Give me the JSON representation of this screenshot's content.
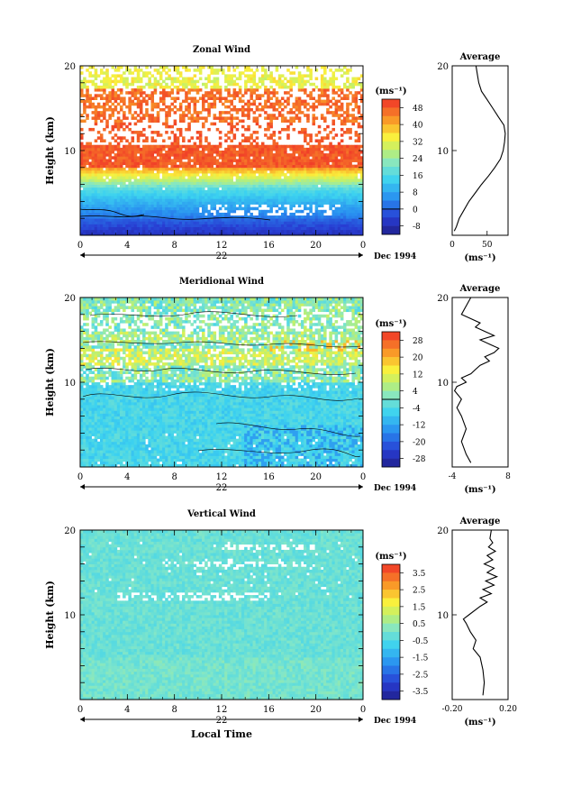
{
  "chart_data": [
    {
      "type": "heatmap",
      "title": "Zonal Wind",
      "ylabel": "Height (km)",
      "yticks": [
        10,
        20
      ],
      "ylim": [
        0,
        20
      ],
      "xticks": [
        "0",
        "4",
        "8",
        "12",
        "16",
        "20",
        "0"
      ],
      "xlim": [
        0,
        24
      ],
      "date_day": "22",
      "date_label": "Dec 1994",
      "colorbar": {
        "unit": "(ms⁻¹)",
        "ticks": [
          "48",
          "40",
          "32",
          "24",
          "16",
          "8",
          "0",
          "-8"
        ],
        "range": [
          -12,
          52
        ]
      },
      "average": {
        "title": "Average",
        "xlabel": "(ms⁻¹)",
        "xticks": [
          "0",
          "50"
        ],
        "xlim": [
          0,
          80
        ],
        "profile": [
          [
            0.5,
            3
          ],
          [
            1,
            6
          ],
          [
            2,
            10
          ],
          [
            3,
            17
          ],
          [
            4,
            24
          ],
          [
            5,
            33
          ],
          [
            6,
            42
          ],
          [
            7,
            52
          ],
          [
            8,
            61
          ],
          [
            9,
            69
          ],
          [
            10,
            73
          ],
          [
            11,
            75
          ],
          [
            12,
            76
          ],
          [
            13,
            74
          ],
          [
            14,
            66
          ],
          [
            15,
            58
          ],
          [
            16,
            50
          ],
          [
            17,
            42
          ],
          [
            18,
            38
          ],
          [
            19,
            36
          ],
          [
            20,
            34
          ]
        ]
      }
    },
    {
      "type": "heatmap",
      "title": "Meridional Wind",
      "ylabel": "Height (km)",
      "yticks": [
        10,
        20
      ],
      "ylim": [
        0,
        20
      ],
      "xticks": [
        "0",
        "4",
        "8",
        "12",
        "16",
        "20",
        "0"
      ],
      "xlim": [
        0,
        24
      ],
      "date_day": "22",
      "date_label": "Dec 1994",
      "colorbar": {
        "unit": "(ms⁻¹)",
        "ticks": [
          "28",
          "20",
          "12",
          "4",
          "-4",
          "-12",
          "-20",
          "-28"
        ],
        "range": [
          -32,
          32
        ]
      },
      "average": {
        "title": "Average",
        "xlabel": "(ms⁻¹)",
        "xticks": [
          "-4",
          "8"
        ],
        "xlim": [
          -4,
          8
        ],
        "profile": [
          [
            0.5,
            0
          ],
          [
            1.5,
            -1
          ],
          [
            3,
            -2
          ],
          [
            4.5,
            -1
          ],
          [
            6,
            -2
          ],
          [
            7,
            -3
          ],
          [
            8,
            -2
          ],
          [
            9,
            -3.5
          ],
          [
            9.5,
            -3
          ],
          [
            10,
            -1
          ],
          [
            10.5,
            -2
          ],
          [
            11,
            0
          ],
          [
            11.5,
            1
          ],
          [
            12,
            2
          ],
          [
            12.5,
            4
          ],
          [
            13,
            3
          ],
          [
            13.5,
            5
          ],
          [
            14,
            6
          ],
          [
            14.5,
            4
          ],
          [
            15,
            2
          ],
          [
            15.5,
            5
          ],
          [
            16,
            3
          ],
          [
            16.5,
            1
          ],
          [
            17,
            2
          ],
          [
            17.5,
            0
          ],
          [
            18,
            -2
          ],
          [
            19,
            -1
          ],
          [
            20,
            0
          ]
        ]
      }
    },
    {
      "type": "heatmap",
      "title": "Vertical Wind",
      "ylabel": "Height (km)",
      "yticks": [
        10,
        20
      ],
      "ylim": [
        0,
        20
      ],
      "xticks": [
        "0",
        "4",
        "8",
        "12",
        "16",
        "20",
        "0"
      ],
      "xlim": [
        0,
        24
      ],
      "xlabel": "Local Time",
      "date_day": "22",
      "date_label": "Dec 1994",
      "colorbar": {
        "unit": "(ms⁻¹)",
        "ticks": [
          "3.5",
          "2.5",
          "1.5",
          "0.5",
          "-0.5",
          "-1.5",
          "-2.5",
          "-3.5"
        ],
        "range": [
          -4,
          4
        ]
      },
      "average": {
        "title": "Average",
        "xlabel": "(ms⁻¹)",
        "xticks": [
          "-0.20",
          "0.20"
        ],
        "xlim": [
          -0.2,
          0.2
        ],
        "profile": [
          [
            0.5,
            0.02
          ],
          [
            2,
            0.03
          ],
          [
            3.5,
            0.02
          ],
          [
            5,
            0.0
          ],
          [
            6,
            -0.05
          ],
          [
            7,
            -0.03
          ],
          [
            8,
            -0.07
          ],
          [
            9,
            -0.1
          ],
          [
            9.5,
            -0.12
          ],
          [
            10,
            -0.08
          ],
          [
            11,
            0.0
          ],
          [
            11.5,
            0.05
          ],
          [
            12,
            0.0
          ],
          [
            12.5,
            0.08
          ],
          [
            13,
            0.02
          ],
          [
            13.5,
            0.1
          ],
          [
            14,
            0.04
          ],
          [
            14.5,
            0.12
          ],
          [
            15,
            0.05
          ],
          [
            15.5,
            0.1
          ],
          [
            16,
            0.03
          ],
          [
            16.5,
            0.09
          ],
          [
            17,
            0.05
          ],
          [
            17.5,
            0.11
          ],
          [
            18,
            0.06
          ],
          [
            18.5,
            0.09
          ],
          [
            19,
            0.07
          ],
          [
            20,
            0.08
          ]
        ]
      }
    }
  ]
}
